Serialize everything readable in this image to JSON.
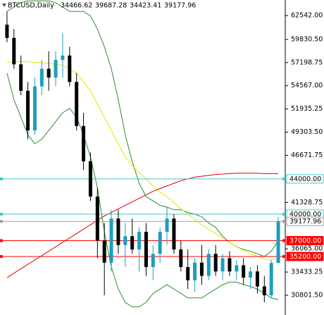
{
  "chart_data": {
    "type": "candlestick",
    "title": "BTCUSD,Daily",
    "open": [
      61500,
      60000,
      57000,
      54000,
      49500,
      54500,
      56500,
      55500,
      57500,
      58000,
      55000,
      50000,
      46000,
      42000,
      37000,
      34500,
      39500,
      36500,
      37500,
      36000,
      38000,
      34000,
      35500,
      38000,
      39500,
      36000,
      34000,
      32500,
      34500,
      33000,
      35500,
      33500,
      35000,
      33500,
      34200,
      32800,
      33500,
      31800,
      30800,
      34466.62
    ],
    "high": [
      63000,
      61000,
      58000,
      55000,
      55500,
      57500,
      58500,
      58500,
      60500,
      59000,
      56000,
      51500,
      47000,
      43000,
      39000,
      40500,
      40500,
      39000,
      39500,
      38500,
      39000,
      36500,
      38500,
      40800,
      40000,
      37000,
      36000,
      35000,
      36500,
      36000,
      36500,
      35500,
      35800,
      34800,
      35000,
      34000,
      34200,
      33000,
      34800,
      39687.28
    ],
    "low": [
      59500,
      56500,
      53500,
      48500,
      49000,
      53500,
      54000,
      54500,
      55500,
      54500,
      49500,
      45000,
      41500,
      35000,
      30800,
      33500,
      35500,
      34000,
      35500,
      33500,
      33000,
      32500,
      34500,
      36500,
      35500,
      33500,
      31500,
      31200,
      32000,
      32500,
      33000,
      32500,
      33000,
      32500,
      32000,
      31500,
      31000,
      30000,
      30500,
      34423.41
    ],
    "close": [
      60000,
      57000,
      54000,
      49500,
      54500,
      56500,
      55500,
      57500,
      58000,
      55000,
      50000,
      46000,
      42000,
      37000,
      34500,
      39500,
      36500,
      37500,
      36000,
      38000,
      34000,
      35500,
      38000,
      39500,
      36000,
      34000,
      32500,
      34500,
      33000,
      35500,
      33500,
      35000,
      33500,
      34200,
      32800,
      33500,
      31800,
      30800,
      34466.62,
      39177.96
    ],
    "bull_color": "#1e9ebd",
    "bear_color": "#000000",
    "lines": [
      {
        "color": "#2e8b2e",
        "values": [
          63000,
          63500,
          64000,
          64200,
          64200,
          64200,
          64200,
          64000,
          63500,
          63000,
          63000,
          63000,
          62500,
          61000,
          59000,
          56500,
          53000,
          49000,
          46000,
          43500,
          42000,
          41500,
          41000,
          40800,
          40500,
          40500,
          40200,
          40000,
          39700,
          39000,
          38500,
          37500,
          36800,
          36300,
          36000,
          35800,
          35500,
          35200,
          35800,
          37000
        ]
      },
      {
        "color": "#2e8b2e",
        "values": [
          56000,
          53000,
          51000,
          49000,
          48000,
          48500,
          49500,
          50500,
          51500,
          52000,
          51000,
          49000,
          46500,
          43000,
          38000,
          34000,
          31500,
          30000,
          29500,
          29500,
          30000,
          31000,
          31500,
          32000,
          31500,
          31000,
          30500,
          30500,
          30500,
          31000,
          31500,
          32000,
          32300,
          32300,
          32000,
          31800,
          31500,
          31000,
          30500,
          30300
        ]
      },
      {
        "color": "#e6e600",
        "values": [
          57200,
          57300,
          57300,
          57300,
          57200,
          57200,
          57100,
          57000,
          56900,
          56500,
          56000,
          55000,
          54000,
          52500,
          51000,
          49500,
          48000,
          46500,
          45500,
          44700,
          44000,
          43200,
          42500,
          42000,
          41300,
          40600,
          40000,
          39400,
          38800,
          38300,
          37800,
          37300,
          36800,
          36300,
          35900,
          35500,
          35200,
          34900,
          34800,
          35000
        ]
      },
      {
        "color": "#e00000",
        "values": [
          32800,
          33300,
          33800,
          34300,
          34800,
          35300,
          35800,
          36300,
          36800,
          37300,
          37800,
          38300,
          38800,
          39300,
          39800,
          40200,
          40600,
          41000,
          41400,
          41800,
          42200,
          42600,
          42900,
          43200,
          43500,
          43800,
          44000,
          44200,
          44300,
          44400,
          44500,
          44550,
          44600,
          44650,
          44650,
          44650,
          44650,
          44600,
          44600,
          44600
        ]
      }
    ],
    "levels": [
      {
        "value": 44000,
        "label": "44000.00",
        "color": "#40c8c8",
        "text_color": "#000000"
      },
      {
        "value": 40000,
        "label": "40000.00",
        "color": "#40c8c8",
        "text_color": "#000000"
      },
      {
        "value": 39177.96,
        "color": "#a0a0a0",
        "text_color": "#000000"
      },
      {
        "value": 37000,
        "label": "37000.00",
        "color": "#ff0000",
        "text_color": "#ffffff"
      },
      {
        "value": 35200,
        "label": "35200.00",
        "color": "#ff0000",
        "text_color": "#ffffff"
      }
    ],
    "ylim": [
      28560,
      64300
    ],
    "yticks": [
      {
        "value": 62542,
        "label": "62542.00"
      },
      {
        "value": 59830.5,
        "label": "59830.50"
      },
      {
        "value": 57198.75,
        "label": "57198.75"
      },
      {
        "value": 54567,
        "label": "54567.00"
      },
      {
        "value": 51935.25,
        "label": "51935.25"
      },
      {
        "value": 49303.5,
        "label": "49303.50"
      },
      {
        "value": 46671.75,
        "label": "46671.75"
      },
      {
        "value": 41328.75,
        "label": "41328.75"
      },
      {
        "value": 36065,
        "label": "36065.00"
      },
      {
        "value": 33433.25,
        "label": "33433.25"
      },
      {
        "value": 30801.5,
        "label": "30801.50"
      }
    ]
  }
}
